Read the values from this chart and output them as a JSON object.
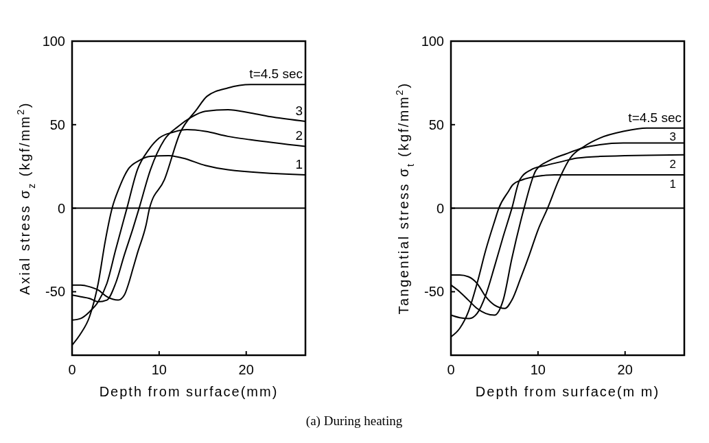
{
  "chart_data": [
    {
      "type": "line",
      "xlabel": "Depth from surface(mm)",
      "ylabel": "Axial stress σ$_{z}$ (kgf/mm$^{2}$)",
      "xlim": [
        0,
        26.8
      ],
      "ylim": [
        -88,
        100
      ],
      "xticks": [
        0,
        10,
        20
      ],
      "yticks": [
        -50,
        0,
        50,
        100
      ],
      "grid": false,
      "line_style": "solid",
      "marker": "none",
      "ref_lines": [
        {
          "axis": "y",
          "value": 0,
          "color": "#000000"
        }
      ],
      "annotations": [
        "(a) During heating"
      ],
      "series": [
        {
          "name": "t=4.5 sec",
          "color": "#000000",
          "x": [
            0,
            1,
            2,
            3,
            4,
            5.3,
            6,
            6.5,
            7,
            7.5,
            8.5,
            8.9,
            10.6,
            12.4,
            14.3,
            15.5,
            17.9,
            20.5,
            26.8
          ],
          "values": [
            -46,
            -46,
            -47,
            -49,
            -53,
            -55,
            -52,
            -45,
            -36,
            -27,
            -10,
            0,
            17,
            45,
            59,
            67,
            72,
            74,
            74
          ]
        },
        {
          "name": "3",
          "color": "#000000",
          "x": [
            0,
            1,
            2,
            3,
            4,
            5,
            6,
            7,
            7.7,
            9,
            10.6,
            12.2,
            13.7,
            15.3,
            17.9,
            20.5,
            23.1,
            26.8
          ],
          "values": [
            -52,
            -53,
            -54,
            -56,
            -55,
            -45,
            -28,
            -12,
            0,
            23,
            41,
            49,
            54.5,
            58,
            59,
            57,
            54.5,
            52
          ]
        },
        {
          "name": "2",
          "color": "#000000",
          "x": [
            0,
            1,
            2,
            3,
            4,
            5,
            6.3,
            7.5,
            8.8,
            10,
            11.6,
            13.2,
            15.3,
            17.9,
            20.5,
            26.8
          ],
          "values": [
            -67,
            -66,
            -62,
            -56,
            -45,
            -25,
            0,
            23,
            35,
            42,
            45.5,
            47,
            46,
            43,
            41,
            37
          ]
        },
        {
          "name": "1",
          "color": "#000000",
          "x": [
            0,
            1,
            2,
            3,
            3.8,
            4.6,
            5.4,
            6.4,
            7.7,
            9,
            11.1,
            12.7,
            15.3,
            17.9,
            26.8
          ],
          "values": [
            -82,
            -75,
            -65,
            -45,
            -20,
            0,
            12,
            23,
            28.5,
            31,
            31.4,
            30,
            25.6,
            23,
            20
          ]
        }
      ]
    },
    {
      "type": "line",
      "xlabel": "Depth from surface(m m)",
      "ylabel": "Tangential stress σ$_{t}$ (kgf/mm$^{2}$)",
      "xlim": [
        0,
        26.8
      ],
      "ylim": [
        -88,
        100
      ],
      "xticks": [
        0,
        10,
        20
      ],
      "yticks": [
        -50,
        0,
        50,
        100
      ],
      "grid": false,
      "line_style": "solid",
      "marker": "none",
      "ref_lines": [
        {
          "axis": "y",
          "value": 0,
          "color": "#000000"
        }
      ],
      "series": [
        {
          "name": "t=4.5 sec",
          "color": "#000000",
          "x": [
            0,
            1,
            2,
            3,
            4,
            5,
            6.2,
            7,
            8,
            9,
            10,
            11.1,
            12.4,
            13.7,
            15.3,
            17.1,
            19.8,
            22.5,
            26.8
          ],
          "values": [
            -40,
            -40,
            -41,
            -45,
            -53,
            -58,
            -60,
            -55,
            -42,
            -28,
            -13,
            0,
            17,
            30,
            37,
            42,
            46,
            48,
            48
          ]
        },
        {
          "name": "3",
          "color": "#000000",
          "x": [
            0,
            1,
            2,
            3,
            4,
            5,
            6,
            7,
            8,
            8.4,
            9.8,
            11.3,
            13.2,
            15.1,
            17.1,
            19.8,
            26.8
          ],
          "values": [
            -46,
            -50,
            -55,
            -60,
            -63,
            -64,
            -55,
            -30,
            -8,
            0,
            23,
            28.5,
            32.5,
            36,
            38,
            39,
            39
          ]
        },
        {
          "name": "2",
          "color": "#000000",
          "x": [
            0,
            1,
            2.1,
            3,
            4,
            5,
            6,
            7,
            7.9,
            9.2,
            10.8,
            12.4,
            14.5,
            17.1,
            26.8
          ],
          "values": [
            -64,
            -65.5,
            -66,
            -63,
            -52,
            -35,
            -17,
            0,
            17,
            23,
            25.5,
            27.5,
            30,
            31,
            32
          ]
        },
        {
          "name": "1",
          "color": "#000000",
          "x": [
            0,
            1,
            2,
            3,
            4,
            5,
            5.5,
            6.6,
            7.1,
            8.2,
            9.8,
            11.9,
            26.8
          ],
          "values": [
            -77,
            -72,
            -62,
            -45,
            -25,
            -8,
            0,
            10,
            14,
            17,
            19,
            20,
            20
          ]
        }
      ]
    }
  ]
}
